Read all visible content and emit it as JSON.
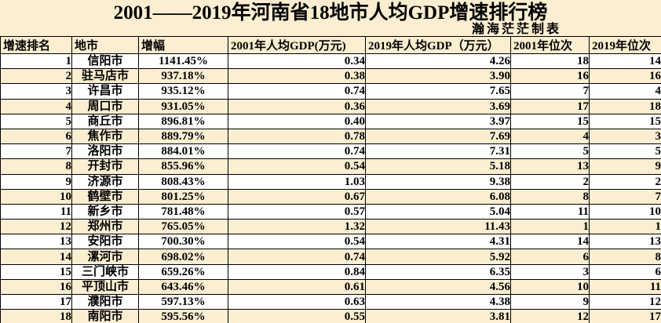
{
  "title": "2001——2019年河南省18地市人均GDP增速排行榜",
  "subtitle": "瀚海茫茫制表",
  "colors": {
    "cream_background": "#fceed1",
    "row_white": "#ffffff",
    "border": "#000000",
    "text": "#000000"
  },
  "chart_data": {
    "type": "table",
    "title": "2001——2019年河南省18地市人均GDP增速排行榜",
    "credit": "瀚海茫茫制表",
    "columns": [
      "增速排名",
      "地市",
      "增幅",
      "2001年人均GDP(万元)",
      "2019年人均GDP（万元）",
      "2001年位次",
      "2019年位次"
    ],
    "rows": [
      [
        "1",
        "信阳市",
        "1141.45%",
        "0.34",
        "4.26",
        "18",
        "14"
      ],
      [
        "2",
        "驻马店市",
        "937.18%",
        "0.38",
        "3.90",
        "16",
        "16"
      ],
      [
        "3",
        "许昌市",
        "935.12%",
        "0.74",
        "7.65",
        "7",
        "4"
      ],
      [
        "4",
        "周口市",
        "931.05%",
        "0.36",
        "3.69",
        "17",
        "18"
      ],
      [
        "5",
        "商丘市",
        "896.81%",
        "0.40",
        "3.97",
        "15",
        "15"
      ],
      [
        "6",
        "焦作市",
        "889.79%",
        "0.78",
        "7.69",
        "4",
        "3"
      ],
      [
        "7",
        "洛阳市",
        "884.01%",
        "0.74",
        "7.31",
        "5",
        "5"
      ],
      [
        "8",
        "开封市",
        "855.96%",
        "0.54",
        "5.18",
        "13",
        "9"
      ],
      [
        "9",
        "济源市",
        "808.43%",
        "1.03",
        "9.38",
        "2",
        "2"
      ],
      [
        "10",
        "鹤壁市",
        "801.25%",
        "0.67",
        "6.08",
        "8",
        "7"
      ],
      [
        "11",
        "新乡市",
        "781.48%",
        "0.57",
        "5.04",
        "11",
        "10"
      ],
      [
        "12",
        "郑州市",
        "765.05%",
        "1.32",
        "11.43",
        "1",
        "1"
      ],
      [
        "13",
        "安阳市",
        "700.30%",
        "0.54",
        "4.31",
        "14",
        "13"
      ],
      [
        "14",
        "漯河市",
        "698.02%",
        "0.74",
        "5.92",
        "6",
        "8"
      ],
      [
        "15",
        "三门峡市",
        "659.26%",
        "0.84",
        "6.35",
        "3",
        "6"
      ],
      [
        "16",
        "平顶山市",
        "643.46%",
        "0.61",
        "4.56",
        "10",
        "11"
      ],
      [
        "17",
        "濮阳市",
        "597.13%",
        "0.63",
        "4.38",
        "9",
        "12"
      ],
      [
        "18",
        "南阳市",
        "595.56%",
        "0.55",
        "3.81",
        "12",
        "17"
      ]
    ]
  }
}
